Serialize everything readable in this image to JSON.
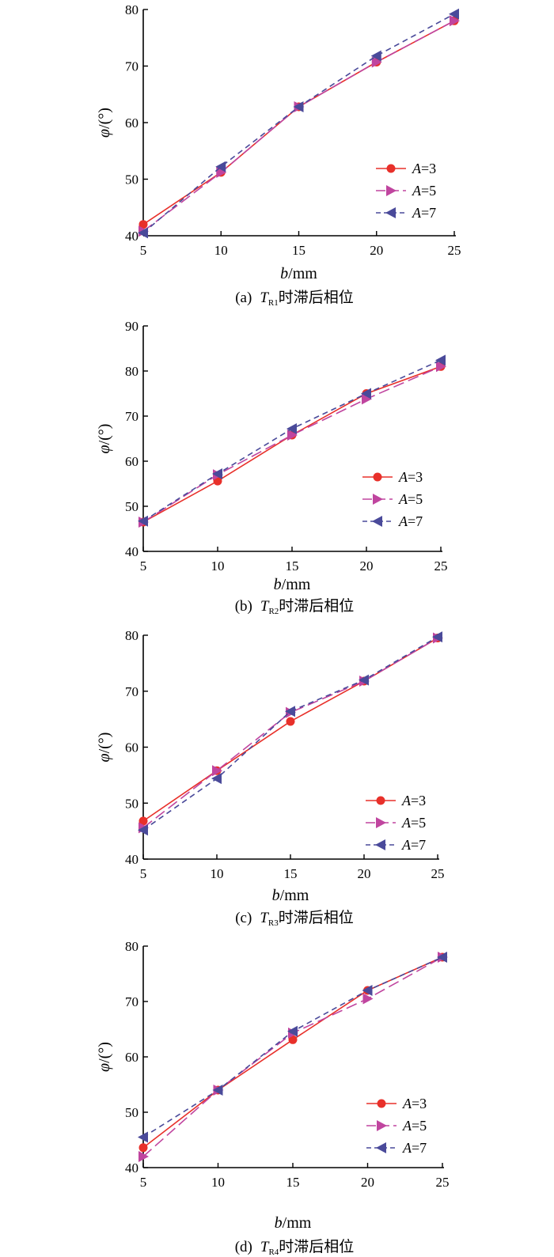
{
  "figure": {
    "colors": {
      "A3": "#e8302a",
      "A5": "#c0459f",
      "A7": "#4a4a9a"
    },
    "legend_labels": [
      {
        "var": "A",
        "eq": "=3"
      },
      {
        "var": "A",
        "eq": "=5"
      },
      {
        "var": "A",
        "eq": "=7"
      }
    ]
  },
  "chart_data": [
    {
      "type": "line",
      "caption_prefix": "(a)",
      "caption_var": "T",
      "caption_sub": "R1",
      "caption_text": "时滞后相位",
      "xlabel_var": "b",
      "xlabel_unit": "/mm",
      "ylabel_var": "φ",
      "ylabel_unit": "/(°)",
      "x": [
        5,
        10,
        15,
        20,
        25
      ],
      "xticks": [
        "5",
        "10",
        "15",
        "20",
        "25"
      ],
      "ylim": [
        40,
        80
      ],
      "yticks": [
        "40",
        "50",
        "60",
        "70",
        "80"
      ],
      "legend_position": "lower-right",
      "series": [
        {
          "name": "A=3",
          "values": [
            42.0,
            51.2,
            62.8,
            70.7,
            78.0
          ]
        },
        {
          "name": "A=5",
          "values": [
            40.8,
            51.2,
            62.8,
            70.7,
            78.0
          ]
        },
        {
          "name": "A=7",
          "values": [
            40.5,
            52.2,
            62.8,
            71.8,
            79.2
          ]
        }
      ]
    },
    {
      "type": "line",
      "caption_prefix": "(b)",
      "caption_var": "T",
      "caption_sub": "R2",
      "caption_text": "时滞后相位",
      "xlabel_var": "b",
      "xlabel_unit": "/mm",
      "ylabel_var": "φ",
      "ylabel_unit": "/(°)",
      "x": [
        5,
        10,
        15,
        20,
        25
      ],
      "xticks": [
        "5",
        "10",
        "15",
        "20",
        "25"
      ],
      "ylim": [
        40,
        90
      ],
      "yticks": [
        "40",
        "50",
        "60",
        "70",
        "80",
        "90"
      ],
      "legend_position": "lower-right",
      "series": [
        {
          "name": "A=3",
          "values": [
            46.5,
            55.6,
            65.8,
            75.0,
            81.0
          ]
        },
        {
          "name": "A=5",
          "values": [
            46.5,
            57.0,
            65.8,
            73.8,
            81.0
          ]
        },
        {
          "name": "A=7",
          "values": [
            46.7,
            57.2,
            67.2,
            75.0,
            82.4
          ]
        }
      ]
    },
    {
      "type": "line",
      "caption_prefix": "(c)",
      "caption_var": "T",
      "caption_sub": "R3",
      "caption_text": "时滞后相位",
      "xlabel_var": "b",
      "xlabel_unit": "/mm",
      "ylabel_var": "φ",
      "ylabel_unit": "/(°)",
      "x": [
        5,
        10,
        15,
        20,
        25
      ],
      "xticks": [
        "5",
        "10",
        "15",
        "20",
        "25"
      ],
      "ylim": [
        40,
        80
      ],
      "yticks": [
        "40",
        "50",
        "60",
        "70",
        "80"
      ],
      "legend_position": "lower-right",
      "series": [
        {
          "name": "A=3",
          "values": [
            46.8,
            55.8,
            64.6,
            71.8,
            79.5
          ]
        },
        {
          "name": "A=5",
          "values": [
            45.6,
            55.8,
            66.2,
            71.8,
            79.5
          ]
        },
        {
          "name": "A=7",
          "values": [
            45.2,
            54.4,
            66.4,
            72.0,
            79.7
          ]
        }
      ]
    },
    {
      "type": "line",
      "caption_prefix": "(d)",
      "caption_var": "T",
      "caption_sub": "R4",
      "caption_text": "时滞后相位",
      "xlabel_var": "b",
      "xlabel_unit": "/mm",
      "ylabel_var": "φ",
      "ylabel_unit": "/(°)",
      "x": [
        5,
        10,
        15,
        20,
        25
      ],
      "xticks": [
        "5",
        "10",
        "15",
        "20",
        "25"
      ],
      "ylim": [
        40,
        80
      ],
      "yticks": [
        "40",
        "50",
        "60",
        "70",
        "80"
      ],
      "legend_position": "lower-right",
      "series": [
        {
          "name": "A=3",
          "values": [
            43.6,
            54.0,
            63.1,
            72.0,
            78.0
          ]
        },
        {
          "name": "A=5",
          "values": [
            42.0,
            54.0,
            64.3,
            70.5,
            78.0
          ]
        },
        {
          "name": "A=7",
          "values": [
            45.5,
            54.0,
            64.6,
            72.0,
            78.0
          ]
        }
      ]
    }
  ]
}
